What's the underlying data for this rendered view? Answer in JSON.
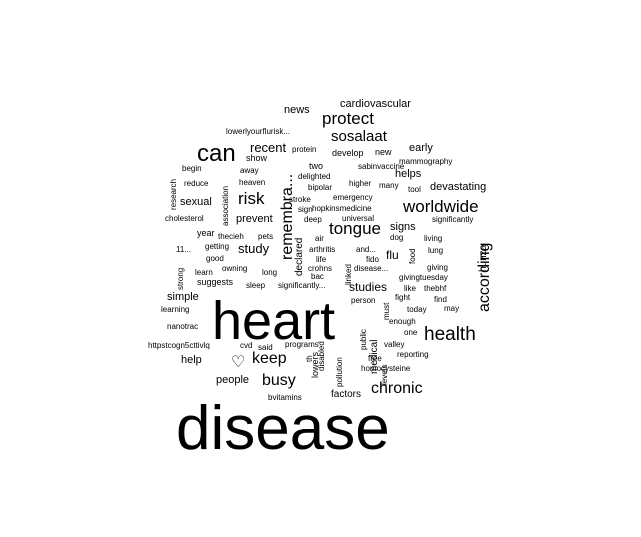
{
  "wordcloud": {
    "color": "#000000",
    "words": [
      {
        "text": "disease",
        "size": 62
      },
      {
        "text": "heart",
        "size": 54
      },
      {
        "text": "can",
        "size": 24
      },
      {
        "text": "health",
        "size": 19
      },
      {
        "text": "protect",
        "size": 17
      },
      {
        "text": "worldwide",
        "size": 17
      },
      {
        "text": "tongue",
        "size": 17
      },
      {
        "text": "risk",
        "size": 17
      },
      {
        "text": "busy",
        "size": 16
      },
      {
        "text": "chronic",
        "size": 16
      },
      {
        "text": "keep",
        "size": 16
      },
      {
        "text": "remembra...",
        "size": 16,
        "rot": true
      },
      {
        "text": "according",
        "size": 16,
        "rot": true
      },
      {
        "text": "sosalaat",
        "size": 15
      },
      {
        "text": "recent",
        "size": 13
      },
      {
        "text": "study",
        "size": 13
      },
      {
        "text": "studies",
        "size": 12
      },
      {
        "text": "flu",
        "size": 12
      },
      {
        "text": "signs",
        "size": 11
      },
      {
        "text": "helps",
        "size": 11
      },
      {
        "text": "early",
        "size": 11
      },
      {
        "text": "devastating",
        "size": 11
      },
      {
        "text": "news",
        "size": 11
      },
      {
        "text": "cardiovascular",
        "size": 11
      },
      {
        "text": "sexual",
        "size": 11
      },
      {
        "text": "prevent",
        "size": 11
      },
      {
        "text": "simple",
        "size": 11
      },
      {
        "text": "help",
        "size": 11
      },
      {
        "text": "people",
        "size": 11
      },
      {
        "text": "factors",
        "size": 10
      },
      {
        "text": "medical",
        "size": 10,
        "rot": true
      },
      {
        "text": "declared",
        "size": 10,
        "rot": true
      },
      {
        "text": "hunza",
        "size": 10,
        "rot": true
      },
      {
        "text": "show",
        "size": 9
      },
      {
        "text": "develop",
        "size": 9
      },
      {
        "text": "new",
        "size": 9
      },
      {
        "text": "two",
        "size": 9
      },
      {
        "text": "suggests",
        "size": 9
      },
      {
        "text": "year",
        "size": 9
      },
      {
        "text": "lowers",
        "size": 9,
        "rot": true
      },
      {
        "text": "lowerlyourflurisk...",
        "size": 8
      },
      {
        "text": "protein",
        "size": 8
      },
      {
        "text": "sabinvaccine",
        "size": 8
      },
      {
        "text": "mammography",
        "size": 8
      },
      {
        "text": "begin",
        "size": 8
      },
      {
        "text": "away",
        "size": 8
      },
      {
        "text": "delighted",
        "size": 8
      },
      {
        "text": "higher",
        "size": 8
      },
      {
        "text": "many",
        "size": 8
      },
      {
        "text": "tool",
        "size": 8
      },
      {
        "text": "reduce",
        "size": 8
      },
      {
        "text": "heaven",
        "size": 8
      },
      {
        "text": "bipolar",
        "size": 8
      },
      {
        "text": "emergency",
        "size": 8
      },
      {
        "text": "stroke",
        "size": 8
      },
      {
        "text": "sign",
        "size": 8
      },
      {
        "text": "hopkinsmedicine",
        "size": 8
      },
      {
        "text": "cholesterol",
        "size": 8
      },
      {
        "text": "deep",
        "size": 8
      },
      {
        "text": "universal",
        "size": 8
      },
      {
        "text": "significantly",
        "size": 8
      },
      {
        "text": "thecieh",
        "size": 8
      },
      {
        "text": "pets",
        "size": 8
      },
      {
        "text": "air",
        "size": 8
      },
      {
        "text": "dog",
        "size": 8
      },
      {
        "text": "living",
        "size": 8
      },
      {
        "text": "11...",
        "size": 8
      },
      {
        "text": "getting",
        "size": 8
      },
      {
        "text": "arthritis",
        "size": 8
      },
      {
        "text": "and...",
        "size": 8
      },
      {
        "text": "lung",
        "size": 8
      },
      {
        "text": "good",
        "size": 8
      },
      {
        "text": "life",
        "size": 8
      },
      {
        "text": "fido",
        "size": 8
      },
      {
        "text": "learn",
        "size": 8
      },
      {
        "text": "owning",
        "size": 8
      },
      {
        "text": "crohns",
        "size": 8
      },
      {
        "text": "disease...",
        "size": 8
      },
      {
        "text": "giving",
        "size": 8
      },
      {
        "text": "long",
        "size": 8
      },
      {
        "text": "bac",
        "size": 8
      },
      {
        "text": "givingtuesday",
        "size": 8
      },
      {
        "text": "sleep",
        "size": 8
      },
      {
        "text": "significantly...",
        "size": 8
      },
      {
        "text": "like",
        "size": 8
      },
      {
        "text": "thebhf",
        "size": 8
      },
      {
        "text": "learning",
        "size": 8
      },
      {
        "text": "person",
        "size": 8
      },
      {
        "text": "fight",
        "size": 8
      },
      {
        "text": "find",
        "size": 8
      },
      {
        "text": "today",
        "size": 8
      },
      {
        "text": "may",
        "size": 8
      },
      {
        "text": "nanotrac",
        "size": 8
      },
      {
        "text": "enough",
        "size": 8
      },
      {
        "text": "httpstcogn5cttivlq",
        "size": 8
      },
      {
        "text": "cvd",
        "size": 8
      },
      {
        "text": "said",
        "size": 8
      },
      {
        "text": "programs",
        "size": 8
      },
      {
        "text": "valley",
        "size": 8
      },
      {
        "text": "one",
        "size": 8
      },
      {
        "text": "reporting",
        "size": 8
      },
      {
        "text": "free",
        "size": 8
      },
      {
        "text": "homocysteine",
        "size": 8
      },
      {
        "text": "bvitamins",
        "size": 8
      },
      {
        "text": "research",
        "size": 8,
        "rot": true
      },
      {
        "text": "association",
        "size": 8,
        "rot": true
      },
      {
        "text": "strong",
        "size": 8,
        "rot": true
      },
      {
        "text": "linked",
        "size": 8,
        "rot": true
      },
      {
        "text": "food",
        "size": 8,
        "rot": true
      },
      {
        "text": "must",
        "size": 8,
        "rot": true
      },
      {
        "text": "public",
        "size": 8,
        "rot": true
      },
      {
        "text": "levels",
        "size": 8,
        "rot": true
      },
      {
        "text": "pollution",
        "size": 8,
        "rot": true
      },
      {
        "text": "disabled",
        "size": 8,
        "rot": true
      },
      {
        "text": "th",
        "size": 8,
        "rot": true
      },
      {
        "text": "♡",
        "size": 16
      }
    ]
  }
}
